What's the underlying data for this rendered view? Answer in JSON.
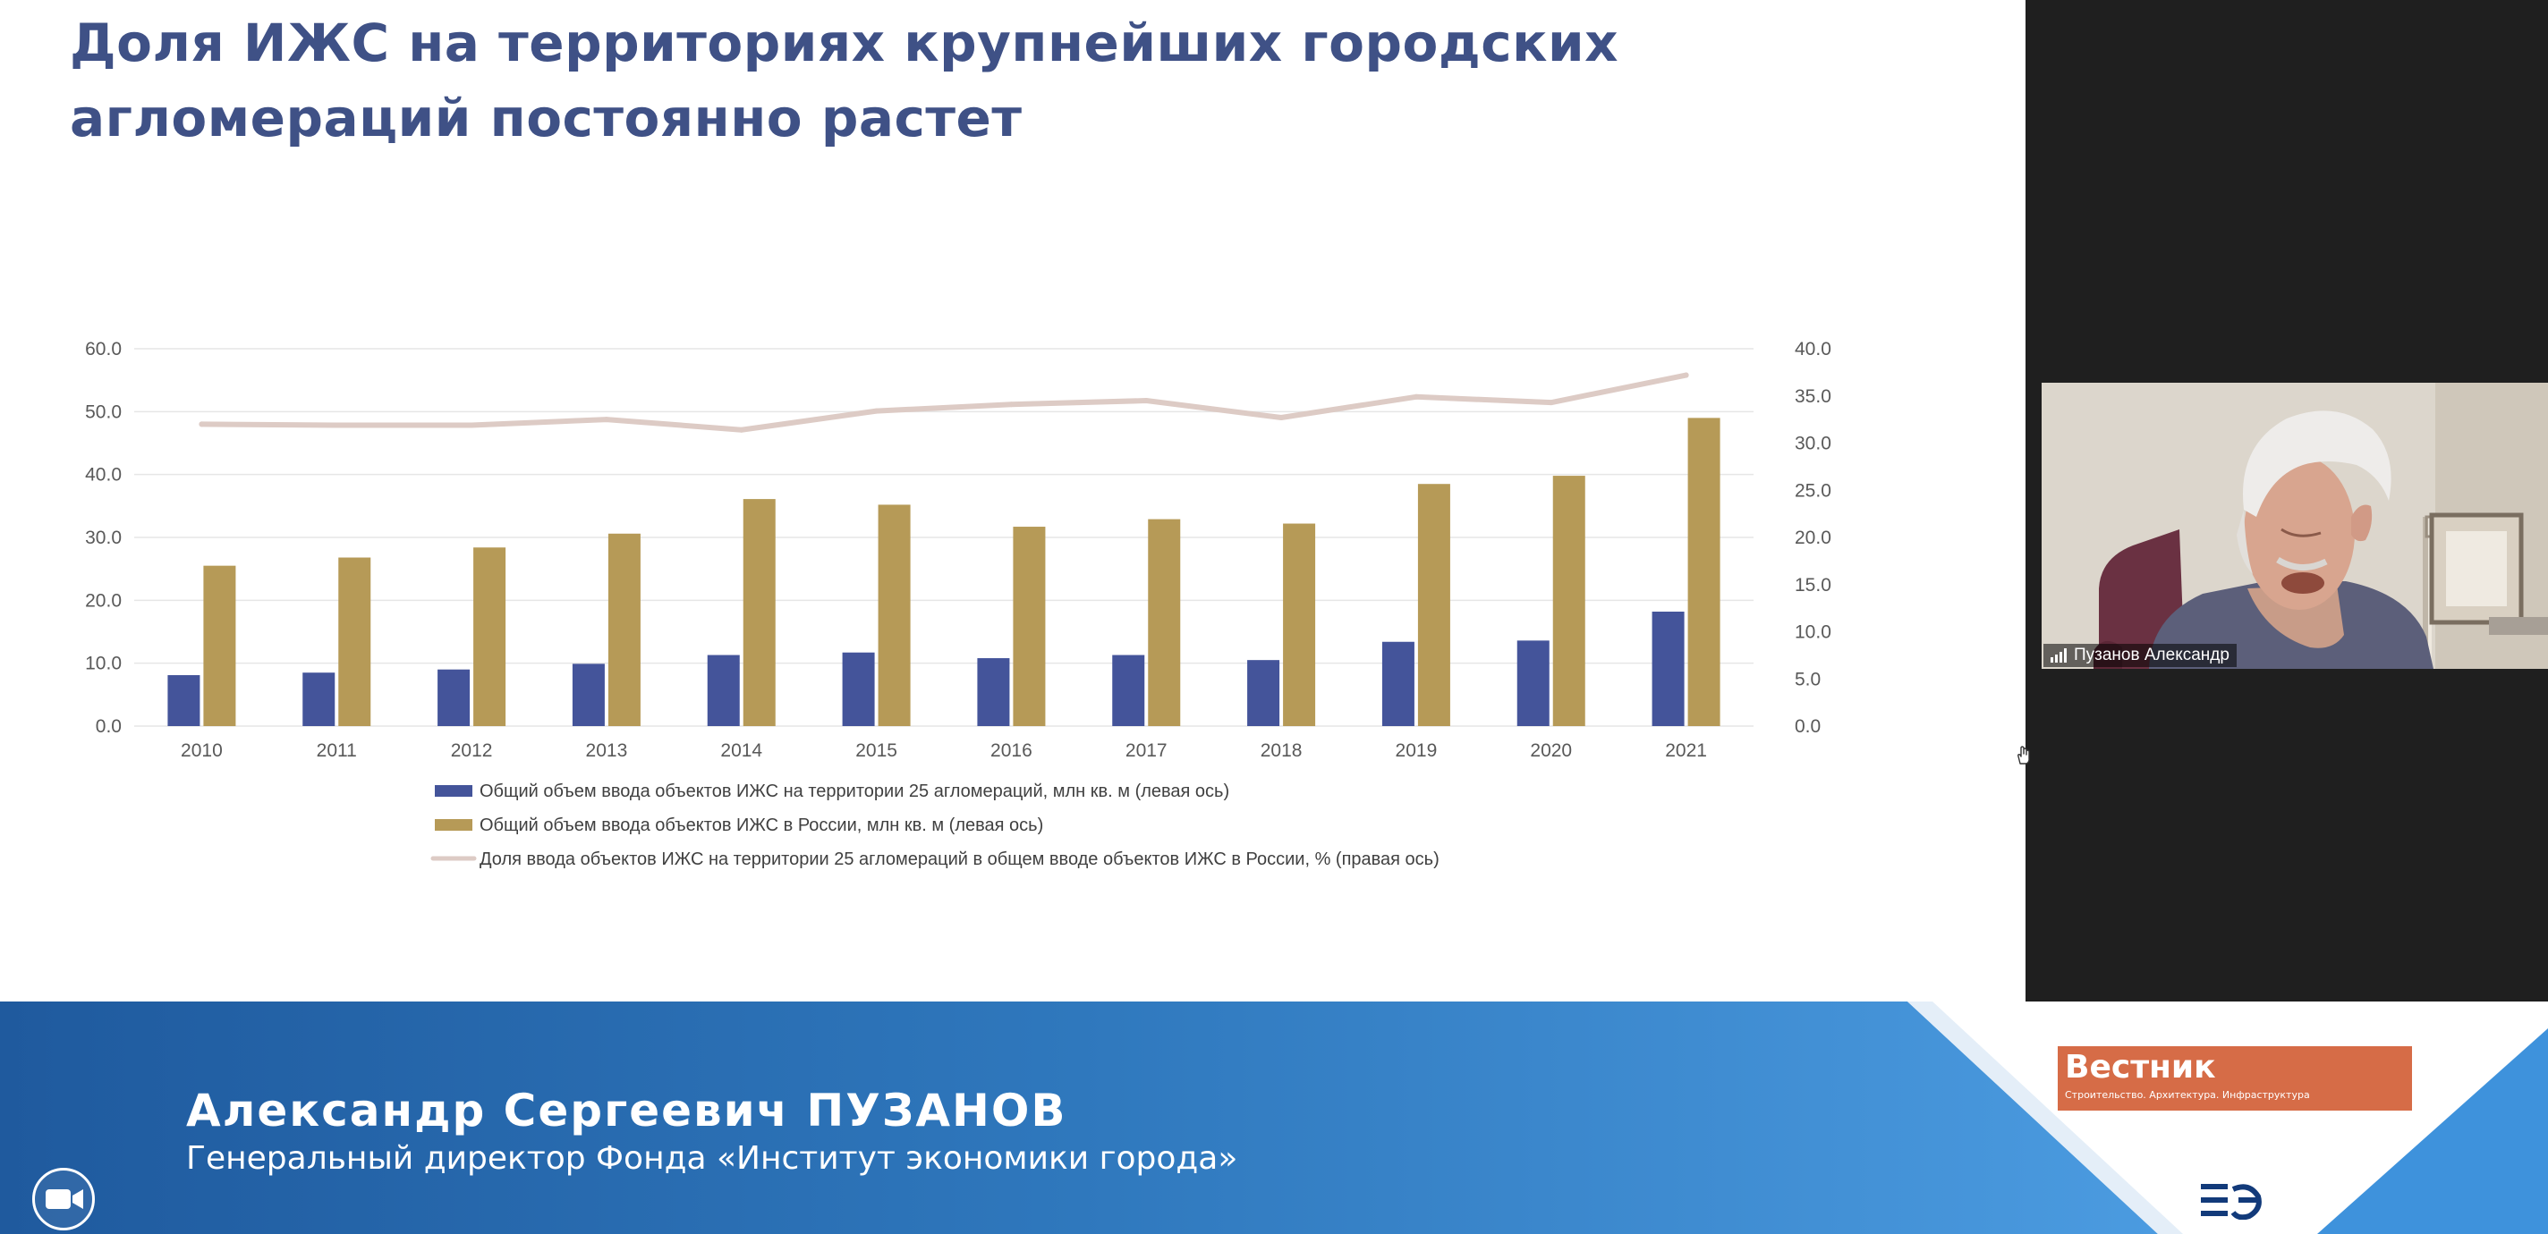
{
  "slide": {
    "title": "Доля ИЖС на территориях крупнейших городских агломераций постоянно растет"
  },
  "chart_data": {
    "type": "bar",
    "categories": [
      "2010",
      "2011",
      "2012",
      "2013",
      "2014",
      "2015",
      "2016",
      "2017",
      "2018",
      "2019",
      "2020",
      "2021"
    ],
    "series": [
      {
        "name": "Общий объем ввода объектов ИЖС на территории 25 агломераций, млн кв. м (левая ось)",
        "type": "bar",
        "axis": "left",
        "color": "#44549a",
        "values": [
          8.1,
          8.5,
          9.0,
          9.9,
          11.3,
          11.7,
          10.8,
          11.3,
          10.5,
          13.4,
          13.6,
          18.2
        ]
      },
      {
        "name": "Общий объем ввода объектов ИЖС в России, млн кв. м (левая ось)",
        "type": "bar",
        "axis": "left",
        "color": "#b69a57",
        "values": [
          25.5,
          26.8,
          28.4,
          30.6,
          36.1,
          35.2,
          31.7,
          32.9,
          32.2,
          38.5,
          39.8,
          49.0
        ]
      },
      {
        "name": "Доля ввода объектов ИЖС на территории 25 агломераций в общем вводе объектов ИЖС в России, % (правая ось)",
        "type": "line",
        "axis": "right",
        "color": "#ddcbc5",
        "values": [
          32.0,
          31.9,
          31.9,
          32.5,
          31.4,
          33.4,
          34.1,
          34.5,
          32.7,
          34.9,
          34.3,
          37.2
        ]
      }
    ],
    "left_ticks": [
      "0.0",
      "10.0",
      "20.0",
      "30.0",
      "40.0",
      "50.0",
      "60.0"
    ],
    "right_ticks": [
      "0.0",
      "5.0",
      "10.0",
      "15.0",
      "20.0",
      "25.0",
      "30.0",
      "35.0",
      "40.0"
    ],
    "ylim_left": [
      0,
      60
    ],
    "ylim_right": [
      0,
      40
    ],
    "grid": true,
    "legend_position": "bottom"
  },
  "participant": {
    "name": "Пузанов Александр"
  },
  "lower_third": {
    "speaker_name": "Александр Сергеевич ПУЗАНОВ",
    "speaker_role": "Генеральный директор Фонда «Институт экономики города»",
    "brand_name": "Вестник",
    "brand_tagline": "Строительство. Архитектура. Инфраструктура",
    "logo_text": "Ξ∂"
  },
  "colors": {
    "title": "#3f5186",
    "banner": "#2e72b8",
    "brand": "#d66c47"
  },
  "icons": {
    "camera_button": "video-camera-icon",
    "signal": "signal-bars-icon",
    "pointer": "hand-cursor-icon"
  }
}
